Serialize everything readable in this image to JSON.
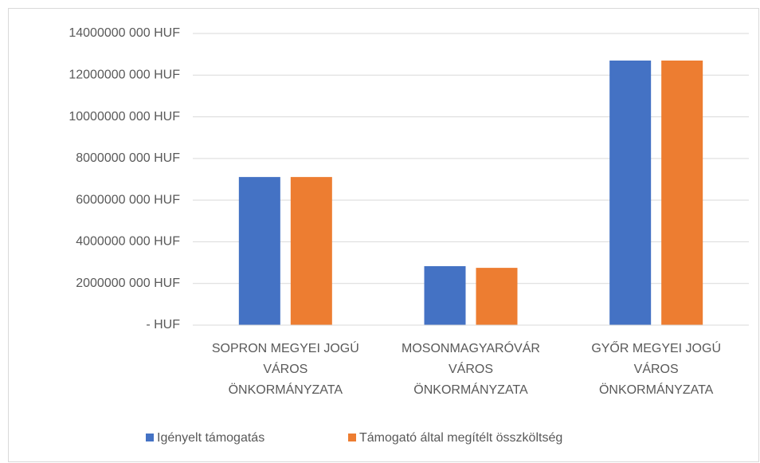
{
  "chart_data": {
    "type": "bar",
    "categories": [
      "SOPRON MEGYEI JOGÚ\nVÁROS\nÖNKORMÁNYZATA",
      "MOSONMAGYARÓVÁR\nVÁROS\nÖNKORMÁNYZATA",
      "GYŐR MEGYEI JOGÚ\nVÁROS\nÖNKORMÁNYZATA"
    ],
    "series": [
      {
        "name": "Igényelt támogatás",
        "color": "#4472c4",
        "values": [
          7110000000,
          2830000000,
          12700000000
        ]
      },
      {
        "name": "Támogató által megítélt összköltség",
        "color": "#ed7d31",
        "values": [
          7110000000,
          2750000000,
          12700000000
        ]
      }
    ],
    "ylim": [
      0,
      14000000000
    ],
    "yticks": [
      {
        "value": 0,
        "label": "-  HUF"
      },
      {
        "value": 2000000000,
        "label": "2000000 000 HUF"
      },
      {
        "value": 4000000000,
        "label": "4000000 000 HUF"
      },
      {
        "value": 6000000000,
        "label": "6000000 000 HUF"
      },
      {
        "value": 8000000000,
        "label": "8000000 000 HUF"
      },
      {
        "value": 10000000000,
        "label": "10000000 000 HUF"
      },
      {
        "value": 12000000000,
        "label": "12000000 000 HUF"
      },
      {
        "value": 14000000000,
        "label": "14000000 000 HUF"
      }
    ],
    "grid": true,
    "legend": "bottom"
  }
}
